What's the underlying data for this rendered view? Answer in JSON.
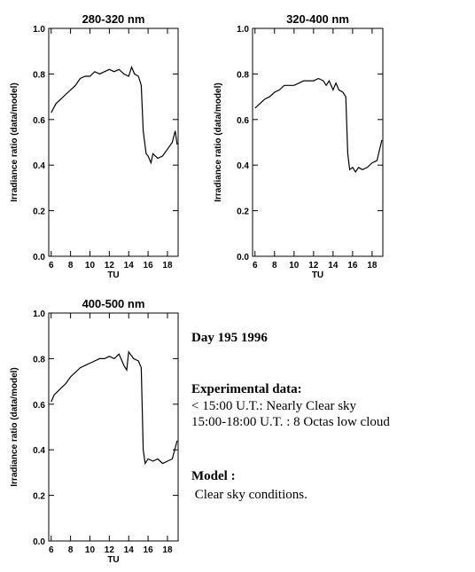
{
  "chart_data": [
    {
      "type": "line",
      "title": "280-320 nm",
      "xlabel": "TU",
      "ylabel": "Irradiance ratio (data/model)",
      "x": [
        6,
        6.5,
        7,
        7.5,
        8,
        8.5,
        9,
        9.5,
        10,
        10.5,
        11,
        11.5,
        12,
        12.5,
        13,
        13.5,
        14,
        14.3,
        14.6,
        15,
        15.3,
        15.5,
        15.8,
        16,
        16.3,
        16.5,
        17,
        17.5,
        18,
        18.5,
        18.8,
        19
      ],
      "series": [
        {
          "name": null,
          "color": "#000000",
          "values": [
            0.63,
            0.67,
            0.69,
            0.71,
            0.73,
            0.75,
            0.78,
            0.79,
            0.79,
            0.81,
            0.8,
            0.81,
            0.82,
            0.81,
            0.82,
            0.8,
            0.79,
            0.83,
            0.8,
            0.79,
            0.75,
            0.55,
            0.45,
            0.44,
            0.41,
            0.45,
            0.43,
            0.44,
            0.47,
            0.5,
            0.55,
            0.49
          ]
        }
      ],
      "xlim": [
        5.75,
        19.1
      ],
      "xticks": [
        6,
        8,
        10,
        12,
        14,
        16,
        18
      ],
      "ylim": [
        0,
        1
      ],
      "yticks": [
        {
          "value": 0,
          "label": "0.0"
        },
        0.2,
        0.4,
        0.6,
        0.8,
        {
          "value": 1,
          "label": "1.0"
        }
      ]
    },
    {
      "type": "line",
      "title": "320-400 nm",
      "xlabel": "TU",
      "ylabel": "Irradiance ratio (data/model)",
      "x": [
        6,
        6.5,
        7,
        7.5,
        8,
        8.5,
        9,
        9.5,
        10,
        10.5,
        11,
        11.5,
        12,
        12.5,
        13,
        13.3,
        13.6,
        14,
        14.3,
        14.6,
        15,
        15.3,
        15.5,
        15.7,
        16,
        16.3,
        16.6,
        17,
        17.5,
        18,
        18.5,
        19
      ],
      "series": [
        {
          "name": null,
          "color": "#000000",
          "values": [
            0.65,
            0.67,
            0.69,
            0.7,
            0.72,
            0.73,
            0.75,
            0.75,
            0.75,
            0.76,
            0.77,
            0.77,
            0.77,
            0.78,
            0.77,
            0.75,
            0.77,
            0.73,
            0.76,
            0.73,
            0.72,
            0.7,
            0.45,
            0.38,
            0.39,
            0.37,
            0.39,
            0.38,
            0.39,
            0.41,
            0.42,
            0.51
          ]
        }
      ],
      "xlim": [
        5.75,
        19.1
      ],
      "xticks": [
        6,
        8,
        10,
        12,
        14,
        16,
        18
      ],
      "ylim": [
        0,
        1
      ],
      "yticks": [
        {
          "value": 0,
          "label": "0.0"
        },
        0.2,
        0.4,
        0.6,
        0.8,
        {
          "value": 1,
          "label": "1.0"
        }
      ]
    },
    {
      "type": "line",
      "title": "400-500 nm",
      "xlabel": "TU",
      "ylabel": "Irradiance ratio (data/model)",
      "x": [
        6,
        6.3,
        7,
        7.5,
        8,
        8.5,
        9,
        9.5,
        10,
        10.5,
        11,
        11.5,
        12,
        12.5,
        13,
        13.5,
        13.8,
        14,
        14.5,
        15,
        15.3,
        15.5,
        15.7,
        16,
        16.5,
        17,
        17.5,
        18,
        18.5,
        19
      ],
      "series": [
        {
          "name": null,
          "color": "#000000",
          "values": [
            0.61,
            0.64,
            0.67,
            0.69,
            0.72,
            0.74,
            0.76,
            0.77,
            0.78,
            0.79,
            0.8,
            0.8,
            0.81,
            0.8,
            0.82,
            0.77,
            0.75,
            0.83,
            0.8,
            0.79,
            0.76,
            0.4,
            0.34,
            0.36,
            0.35,
            0.36,
            0.34,
            0.35,
            0.36,
            0.44
          ]
        }
      ],
      "xlim": [
        5.75,
        19.1
      ],
      "xticks": [
        6,
        8,
        10,
        12,
        14,
        16,
        18
      ],
      "ylim": [
        0,
        1
      ],
      "yticks": [
        {
          "value": 0,
          "label": "0.0"
        },
        0.2,
        0.4,
        0.6,
        0.8,
        {
          "value": 1,
          "label": "1.0"
        }
      ]
    }
  ],
  "notes": {
    "day": "Day 195 1996",
    "experimental_heading": "Experimental data:",
    "experimental_lines": [
      "< 15:00 U.T.: Nearly Clear sky",
      "15:00-18:00 U.T. : 8 Octas low cloud"
    ],
    "model_heading": "Model :",
    "model_line": " Clear sky conditions."
  }
}
